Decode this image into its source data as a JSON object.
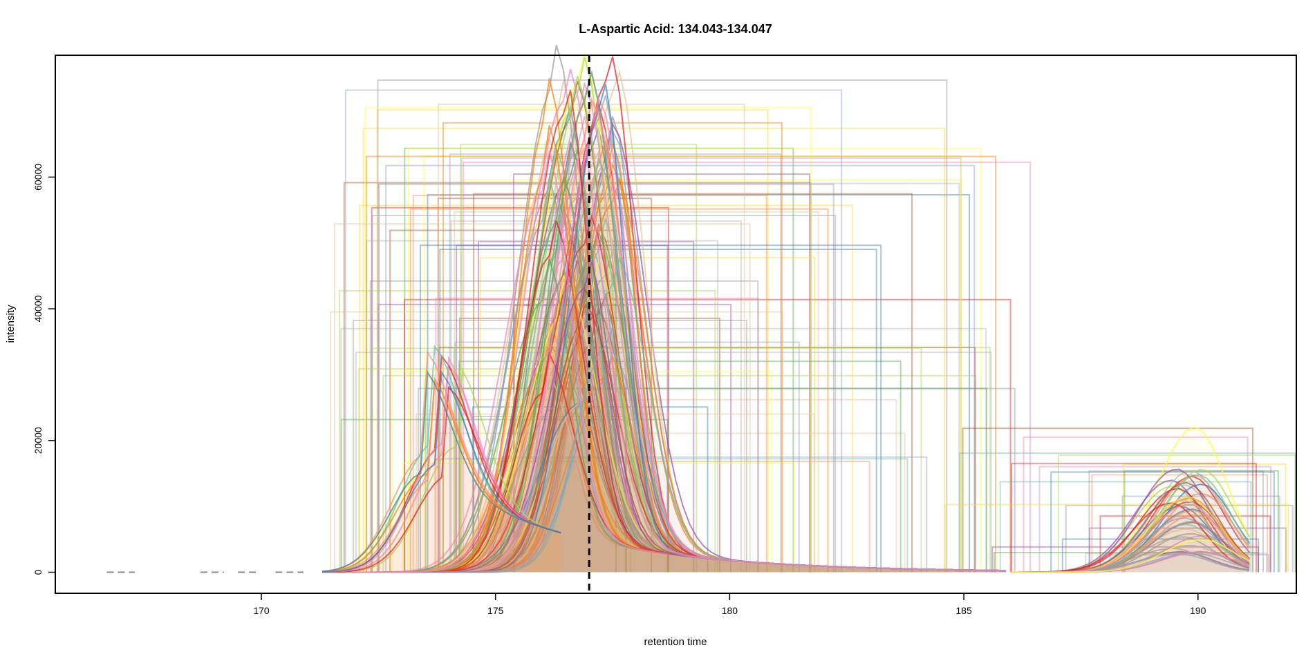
{
  "chart_data": {
    "type": "line",
    "title": "L-Aspartic Acid: 134.043-134.047",
    "xlabel": "retention time",
    "ylabel": "intensity",
    "xlim": [
      165.6,
      192.1
    ],
    "ylim": [
      -3200,
      78500
    ],
    "x_ticks": [
      170,
      175,
      180,
      185,
      190
    ],
    "x_tick_labels": [
      "170",
      "175",
      "180",
      "185",
      "190"
    ],
    "y_ticks": [
      0,
      20000,
      40000,
      60000
    ],
    "y_tick_labels": [
      "0",
      "20000",
      "40000",
      "60000"
    ],
    "reference_line": {
      "x": 177.0,
      "style": "dashed",
      "color": "#000000"
    },
    "grid": false,
    "legend": "none",
    "palette": [
      "#e41a1c",
      "#377eb8",
      "#4daf4a",
      "#984ea3",
      "#ff7f00",
      "#ffff33",
      "#a65628",
      "#f781bf",
      "#999999",
      "#66c2a5",
      "#fc8d62",
      "#8da0cb",
      "#e78ac3",
      "#a6d854",
      "#ffd92f",
      "#e5c494",
      "#b3b3b3"
    ],
    "series_count": 120,
    "peak_groups": [
      {
        "rt_center": 176.8,
        "rt_range": [
          174.5,
          178.5
        ],
        "apex_intensity_range": [
          24000,
          75000
        ]
      },
      {
        "rt_center": 173.6,
        "rt_range": [
          171.3,
          176.0
        ],
        "apex_intensity_range": [
          14000,
          20000
        ]
      },
      {
        "rt_center": 189.7,
        "rt_range": [
          187.5,
          191.2
        ],
        "apex_intensity_range": [
          2000,
          22000
        ]
      }
    ],
    "peak_boxes": {
      "rt_min_range": [
        171.3,
        175.5
      ],
      "rt_max_range": [
        177.5,
        192.1
      ],
      "intensity_range": [
        16000,
        75000
      ]
    }
  }
}
